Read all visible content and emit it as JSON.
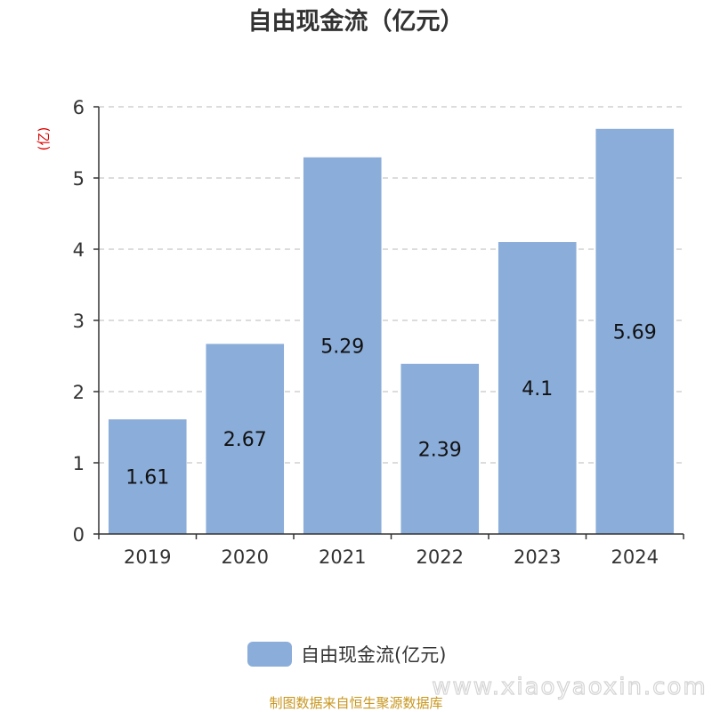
{
  "title": "自由现金流（亿元）",
  "unit_label": "(亿)",
  "source_note": "制图数据来自恒生聚源数据库",
  "watermark": "www.xiaoyaoxin.com",
  "colors": {
    "bar": "#8badd9",
    "unit": "#e00000",
    "source": "#c8961e"
  },
  "chart_data": {
    "type": "bar",
    "title": "自由现金流（亿元）",
    "xlabel": "",
    "ylabel": "(亿)",
    "categories": [
      "2019",
      "2020",
      "2021",
      "2022",
      "2023",
      "2024"
    ],
    "series": [
      {
        "name": "自由现金流(亿元)",
        "values": [
          1.61,
          2.67,
          5.29,
          2.39,
          4.1,
          5.69
        ]
      }
    ],
    "ylim": [
      0,
      6
    ],
    "yticks": [
      0,
      1,
      2,
      3,
      4,
      5,
      6
    ],
    "grid": true,
    "legend_position": "bottom-center"
  }
}
